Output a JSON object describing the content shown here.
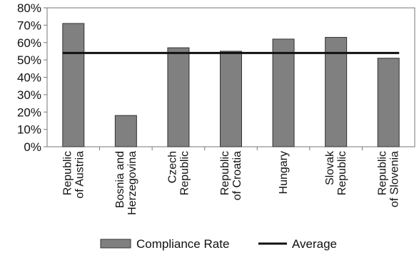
{
  "chart_data": {
    "type": "bar",
    "categories": [
      [
        "Republic",
        "of Austria"
      ],
      [
        "Bosnia and",
        "Herzegovina"
      ],
      [
        "Czech",
        "Republic"
      ],
      [
        "Republic",
        "of Croatia"
      ],
      [
        "Hungary"
      ],
      [
        "Slovak",
        "Republic"
      ],
      [
        "Republic",
        "of Slovenia"
      ]
    ],
    "series": [
      {
        "name": "Compliance Rate",
        "type": "bar",
        "values": [
          71,
          18,
          57,
          55,
          62,
          63,
          51
        ],
        "color": "#808080"
      },
      {
        "name": "Average",
        "type": "line",
        "values": [
          54,
          54,
          54,
          54,
          54,
          54,
          54
        ],
        "color": "#111111"
      }
    ],
    "ylim": [
      0,
      80
    ],
    "yticks": [
      "0%",
      "10%",
      "20%",
      "30%",
      "40%",
      "50%",
      "60%",
      "70%",
      "80%"
    ],
    "grid": false,
    "legend": "bottom"
  }
}
